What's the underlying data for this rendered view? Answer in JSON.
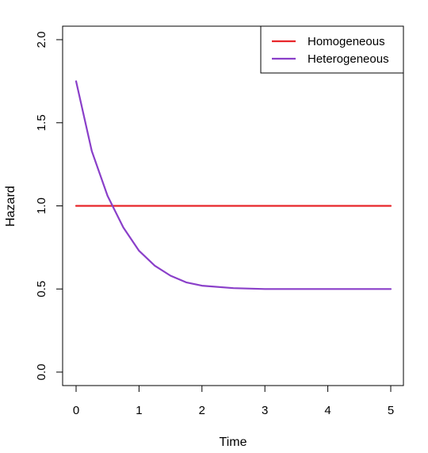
{
  "chart_data": {
    "type": "line",
    "title": "",
    "xlabel": "Time",
    "ylabel": "Hazard",
    "xlim": [
      0,
      5
    ],
    "ylim": [
      0,
      2
    ],
    "xticks": [
      0,
      1,
      2,
      3,
      4,
      5
    ],
    "yticks": [
      0.0,
      0.5,
      1.0,
      1.5,
      2.0
    ],
    "ytick_labels": [
      "0.0",
      "0.5",
      "1.0",
      "1.5",
      "2.0"
    ],
    "xtick_labels": [
      "0",
      "1",
      "2",
      "3",
      "4",
      "5"
    ],
    "grid": false,
    "legend_position": "top-right",
    "series": [
      {
        "name": "Homogeneous",
        "color": "#e8262a",
        "x": [
          0,
          5
        ],
        "y": [
          1.0,
          1.0
        ]
      },
      {
        "name": "Heterogeneous",
        "color": "#8a3fc9",
        "x": [
          0,
          0.25,
          0.5,
          0.75,
          1.0,
          1.25,
          1.5,
          1.75,
          2.0,
          2.5,
          3.0,
          3.5,
          4.0,
          4.5,
          5.0
        ],
        "y": [
          1.75,
          1.33,
          1.06,
          0.87,
          0.73,
          0.64,
          0.58,
          0.54,
          0.52,
          0.505,
          0.5,
          0.5,
          0.5,
          0.5,
          0.5
        ]
      }
    ]
  }
}
